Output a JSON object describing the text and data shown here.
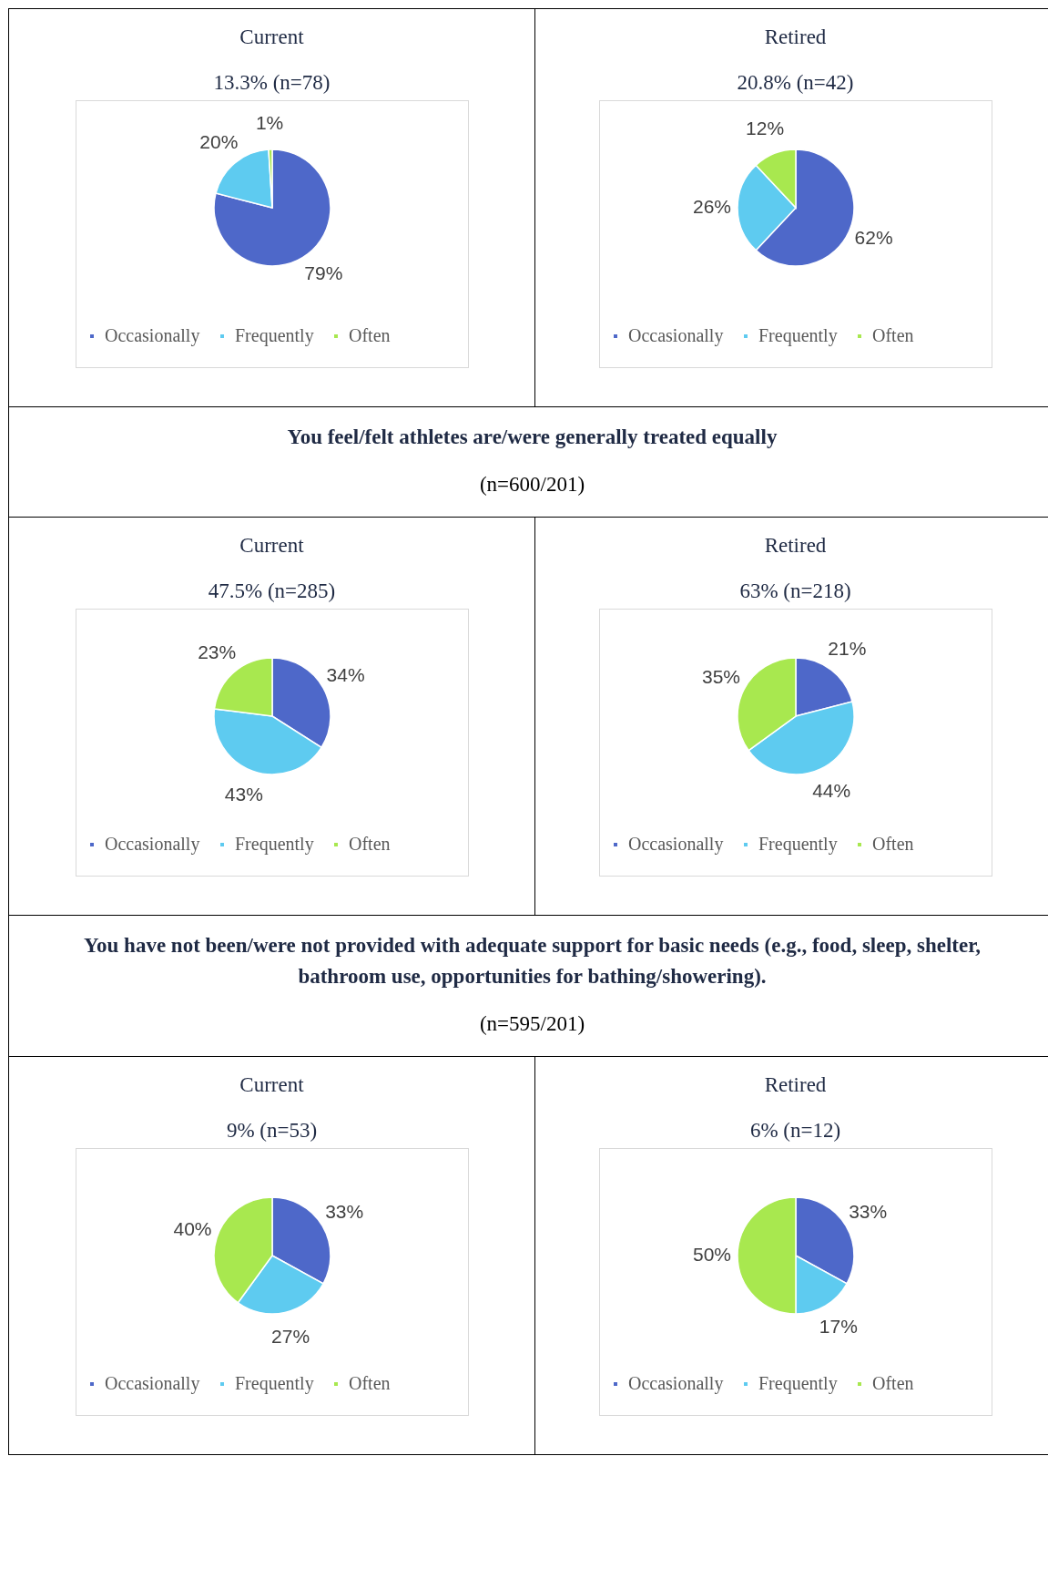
{
  "chart_data": [
    {
      "type": "pie",
      "title": "Current",
      "subtitle": "13.3%  (n=78)",
      "categories": [
        "Occasionally",
        "Frequently",
        "Often"
      ],
      "values": [
        79,
        20,
        1
      ],
      "value_labels": [
        "79%",
        "20%",
        "1%"
      ],
      "colors": [
        "#4e68c9",
        "#5ecbf0",
        "#a8e84f"
      ],
      "legend": "bottom"
    },
    {
      "type": "pie",
      "title": "Retired",
      "subtitle": "20.8% (n=42)",
      "categories": [
        "Occasionally",
        "Frequently",
        "Often"
      ],
      "values": [
        62,
        26,
        12
      ],
      "value_labels": [
        "62%",
        "26%",
        "12%"
      ],
      "colors": [
        "#4e68c9",
        "#5ecbf0",
        "#a8e84f"
      ],
      "legend": "bottom"
    },
    {
      "type": "other",
      "title": "You feel/felt athletes are/were generally treated equally",
      "subtitle": "(n=600/201)"
    },
    {
      "type": "pie",
      "title": "Current",
      "subtitle": "47.5% (n=285)",
      "categories": [
        "Occasionally",
        "Frequently",
        "Often"
      ],
      "values": [
        34,
        43,
        23
      ],
      "value_labels": [
        "34%",
        "43%",
        "23%"
      ],
      "colors": [
        "#4e68c9",
        "#5ecbf0",
        "#a8e84f"
      ],
      "legend": "bottom"
    },
    {
      "type": "pie",
      "title": "Retired",
      "subtitle": "63% (n=218)",
      "categories": [
        "Occasionally",
        "Frequently",
        "Often"
      ],
      "values": [
        21,
        44,
        35
      ],
      "value_labels": [
        "21%",
        "44%",
        "35%"
      ],
      "colors": [
        "#4e68c9",
        "#5ecbf0",
        "#a8e84f"
      ],
      "legend": "bottom"
    },
    {
      "type": "other",
      "title": "You have not been/were not provided with adequate support for basic needs (e.g., food, sleep, shelter, bathroom use, opportunities for bathing/showering).",
      "subtitle": "(n=595/201)"
    },
    {
      "type": "pie",
      "title": "Current",
      "subtitle": "9% (n=53)",
      "categories": [
        "Occasionally",
        "Frequently",
        "Often"
      ],
      "values": [
        33,
        27,
        40
      ],
      "value_labels": [
        "33%",
        "27%",
        "40%"
      ],
      "colors": [
        "#4e68c9",
        "#5ecbf0",
        "#a8e84f"
      ],
      "legend": "bottom"
    },
    {
      "type": "pie",
      "title": "Retired",
      "subtitle": "6% (n=12)",
      "categories": [
        "Occasionally",
        "Frequently",
        "Often"
      ],
      "values": [
        33,
        17,
        50
      ],
      "value_labels": [
        "33%",
        "17%",
        "50%"
      ],
      "colors": [
        "#4e68c9",
        "#5ecbf0",
        "#a8e84f"
      ],
      "legend": "bottom"
    }
  ]
}
